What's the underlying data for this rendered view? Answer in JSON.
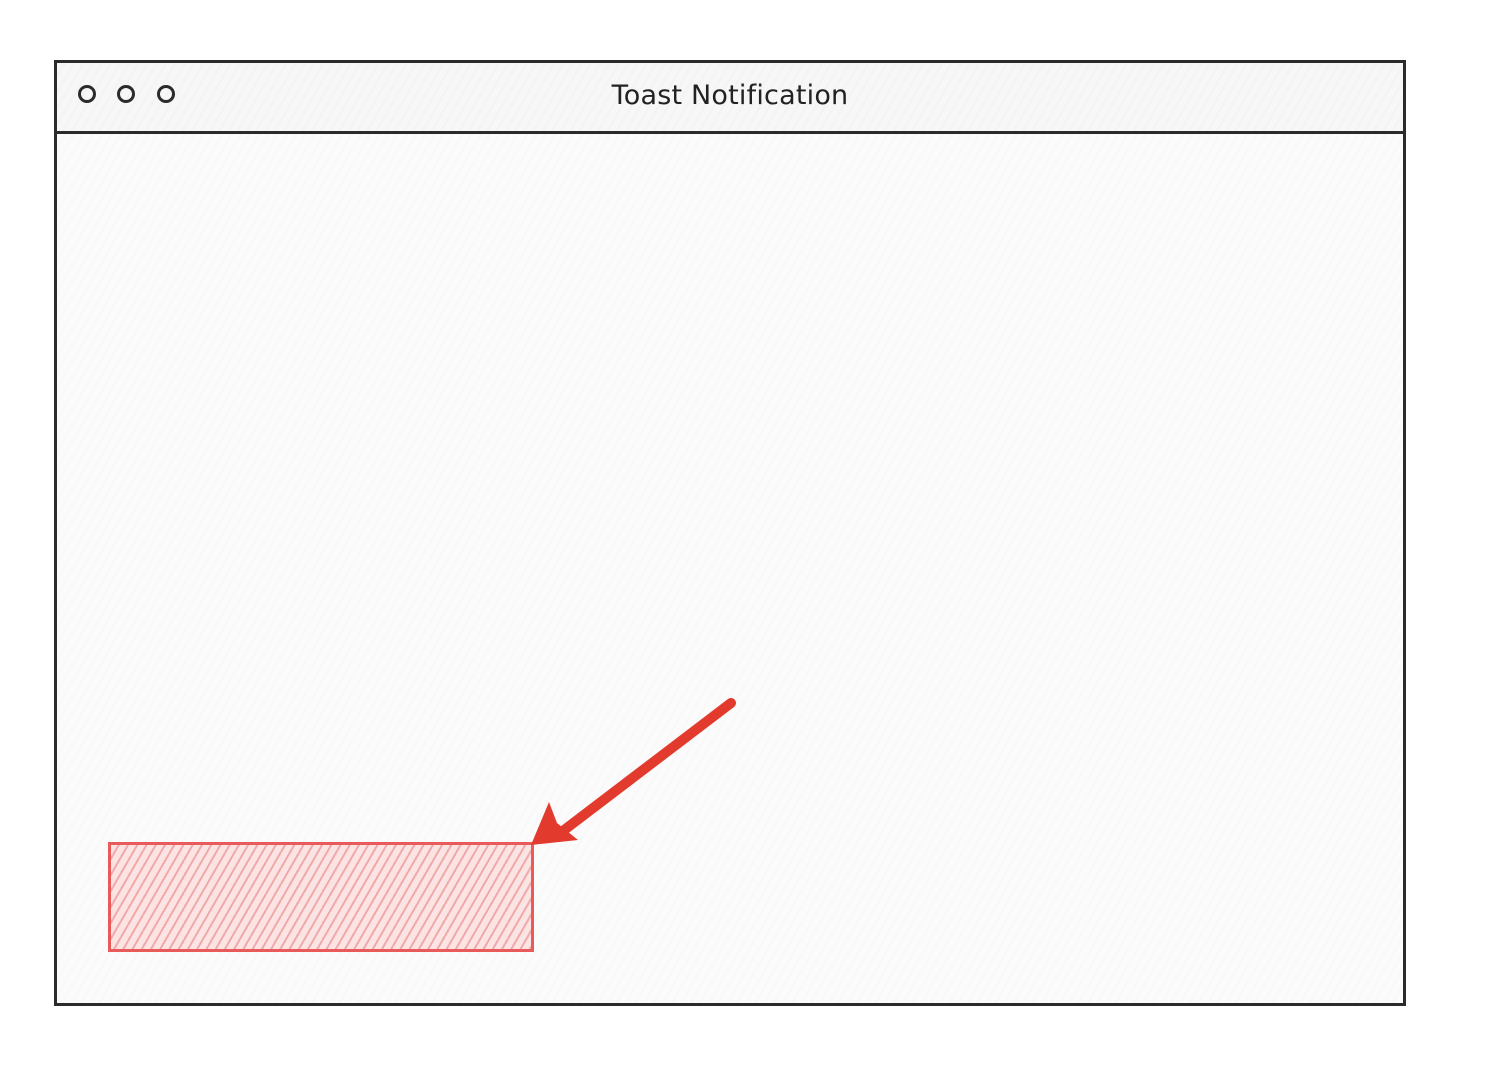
{
  "window": {
    "title": "Toast Notification"
  },
  "icons": {
    "window_controls": [
      "circle-icon",
      "circle-icon",
      "circle-icon"
    ],
    "arrow": "arrow-icon"
  },
  "colors": {
    "border": "#2b2b2b",
    "toast_fill": "#f5b3b3",
    "toast_stroke": "#e95a5a",
    "arrow": "#e23b2e"
  }
}
